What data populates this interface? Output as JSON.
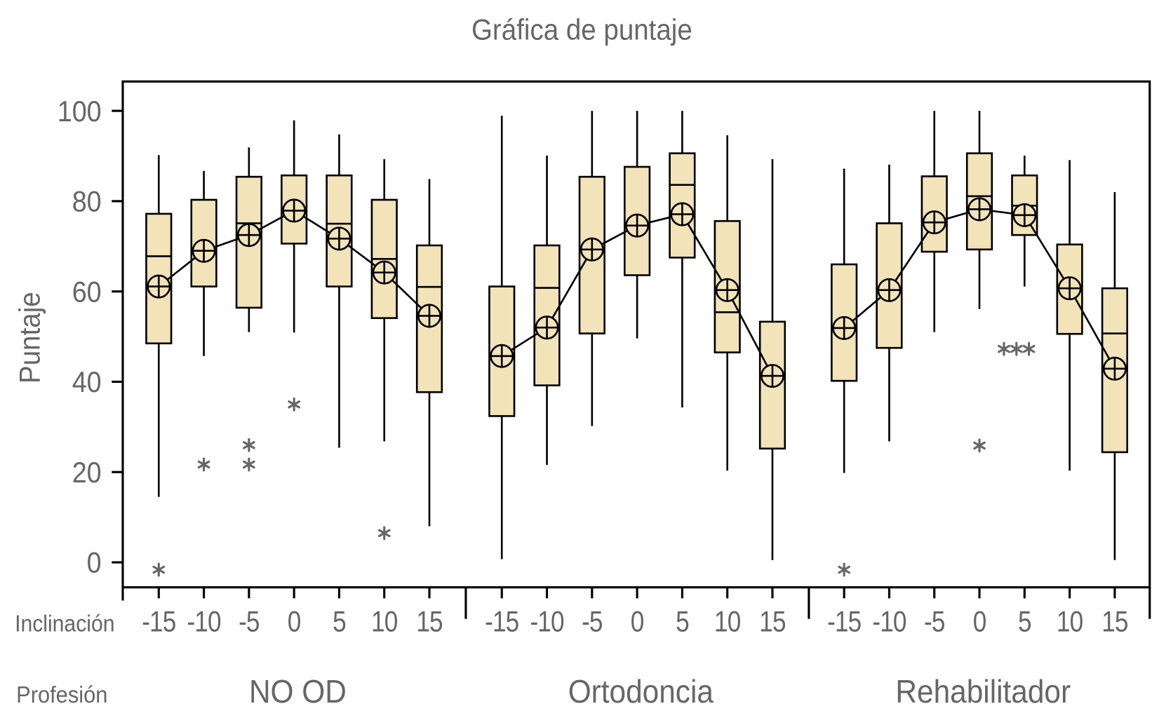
{
  "chart_data": {
    "type": "boxplot",
    "title": "Gráfica de puntaje",
    "ylabel": "Puntaje",
    "ylim": [
      -5,
      106
    ],
    "yticks": [
      0,
      20,
      40,
      60,
      80,
      100
    ],
    "grid": false,
    "box_color": "#f2e3b8",
    "line_color": "#000000",
    "factor_labels": {
      "x1": "Inclinación",
      "x2": "Profesión"
    },
    "mean_symbol": "circle-plus",
    "outlier_symbol": "*",
    "categories": [
      "-15",
      "-10",
      "-5",
      "0",
      "5",
      "10",
      "15"
    ],
    "groups": [
      {
        "name": "NO OD",
        "boxes": [
          {
            "min": 14.5,
            "q1": 48.5,
            "median": 67.8,
            "q3": 77.2,
            "max": 90.2,
            "mean": 61.1,
            "outliers": [
              0
            ]
          },
          {
            "min": 45.7,
            "q1": 61.1,
            "median": 69.1,
            "q3": 80.3,
            "max": 86.7,
            "mean": 69.0,
            "outliers": [
              23.3
            ]
          },
          {
            "min": 51.0,
            "q1": 56.4,
            "median": 75.1,
            "q3": 85.4,
            "max": 91.9,
            "mean": 72.5,
            "outliers": [
              27.6,
              23.3
            ]
          },
          {
            "min": 50.9,
            "q1": 70.6,
            "median": 77.9,
            "q3": 85.7,
            "max": 97.9,
            "mean": 77.9,
            "outliers": [
              36.6
            ]
          },
          {
            "min": 25.4,
            "q1": 61.1,
            "median": 75.0,
            "q3": 85.7,
            "max": 94.8,
            "mean": 71.7,
            "outliers": []
          },
          {
            "min": 26.8,
            "q1": 54.1,
            "median": 67.2,
            "q3": 80.3,
            "max": 89.3,
            "mean": 64.2,
            "outliers": [
              8.1
            ]
          },
          {
            "min": 8.0,
            "q1": 37.7,
            "median": 61.0,
            "q3": 70.2,
            "max": 84.9,
            "mean": 54.6,
            "outliers": []
          }
        ]
      },
      {
        "name": "Ortodoncia",
        "boxes": [
          {
            "min": 0.7,
            "q1": 32.4,
            "median": 46.0,
            "q3": 61.1,
            "max": 98.9,
            "mean": 45.7,
            "outliers": []
          },
          {
            "min": 21.6,
            "q1": 39.2,
            "median": 60.8,
            "q3": 70.2,
            "max": 90.1,
            "mean": 52.0,
            "outliers": []
          },
          {
            "min": 30.2,
            "q1": 50.7,
            "median": 69.3,
            "q3": 85.4,
            "max": 100,
            "mean": 69.3,
            "outliers": []
          },
          {
            "min": 49.6,
            "q1": 63.6,
            "median": 75.0,
            "q3": 87.6,
            "max": 100,
            "mean": 74.6,
            "outliers": []
          },
          {
            "min": 34.3,
            "q1": 67.5,
            "median": 83.6,
            "q3": 90.6,
            "max": 100,
            "mean": 77.1,
            "outliers": []
          },
          {
            "min": 20.3,
            "q1": 46.5,
            "median": 55.4,
            "q3": 75.6,
            "max": 94.6,
            "mean": 60.3,
            "outliers": []
          },
          {
            "min": 0.5,
            "q1": 25.2,
            "median": 41.0,
            "q3": 53.3,
            "max": 89.3,
            "mean": 41.3,
            "outliers": []
          }
        ]
      },
      {
        "name": "Rehabilitador",
        "boxes": [
          {
            "min": 19.8,
            "q1": 40.2,
            "median": 52.0,
            "q3": 66.0,
            "max": 87.2,
            "mean": 51.9,
            "outliers": [
              0
            ]
          },
          {
            "min": 26.8,
            "q1": 47.5,
            "median": 60.5,
            "q3": 75.1,
            "max": 88.1,
            "mean": 60.3,
            "outliers": []
          },
          {
            "min": 51.0,
            "q1": 68.8,
            "median": 75.5,
            "q3": 85.5,
            "max": 100,
            "mean": 75.3,
            "outliers": []
          },
          {
            "min": 56.1,
            "q1": 69.3,
            "median": 81.1,
            "q3": 90.6,
            "max": 100,
            "mean": 78.2,
            "outliers": [
              27.5
            ]
          },
          {
            "min": 61.1,
            "q1": 72.5,
            "median": 79.0,
            "q3": 85.7,
            "max": 90.1,
            "mean": 76.9,
            "outliers": [
              48.9,
              48.9,
              48.9
            ]
          },
          {
            "min": 20.3,
            "q1": 50.6,
            "median": 61.0,
            "q3": 70.4,
            "max": 89.1,
            "mean": 60.7,
            "outliers": []
          },
          {
            "min": 0.5,
            "q1": 24.4,
            "median": 50.7,
            "q3": 60.7,
            "max": 82.0,
            "mean": 42.9,
            "outliers": []
          }
        ]
      }
    ]
  }
}
